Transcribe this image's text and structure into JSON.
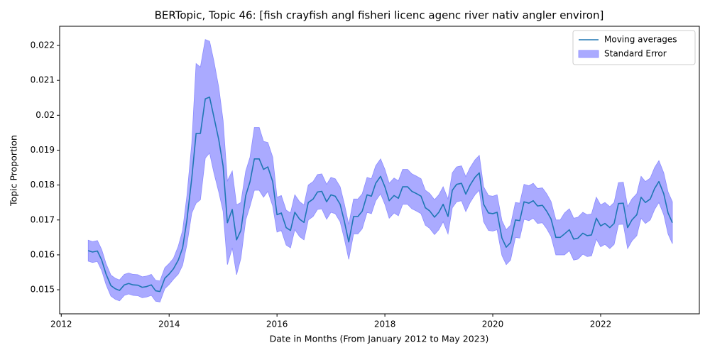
{
  "chart_data": {
    "type": "line",
    "title": "BERTopic, Topic 46: [fish crayfish angl fisheri licenc agenc river nativ angler environ]",
    "xlabel": "Date in Months (From January 2012 to May 2023)",
    "ylabel": "Topic Proportion",
    "x": [
      2012.5,
      2012.58,
      2012.67,
      2012.75,
      2012.83,
      2012.92,
      2013.0,
      2013.08,
      2013.17,
      2013.25,
      2013.33,
      2013.42,
      2013.5,
      2013.58,
      2013.67,
      2013.75,
      2013.83,
      2013.92,
      2014.0,
      2014.08,
      2014.17,
      2014.25,
      2014.33,
      2014.42,
      2014.5,
      2014.58,
      2014.67,
      2014.75,
      2014.83,
      2014.92,
      2015.0,
      2015.08,
      2015.17,
      2015.25,
      2015.33,
      2015.42,
      2015.5,
      2015.58,
      2015.67,
      2015.75,
      2015.83,
      2015.92,
      2016.0,
      2016.08,
      2016.17,
      2016.25,
      2016.33,
      2016.42,
      2016.5,
      2016.58,
      2016.67,
      2016.75,
      2016.83,
      2016.92,
      2017.0,
      2017.08,
      2017.17,
      2017.25,
      2017.33,
      2017.42,
      2017.5,
      2017.58,
      2017.67,
      2017.75,
      2017.83,
      2017.92,
      2018.0,
      2018.08,
      2018.17,
      2018.25,
      2018.33,
      2018.42,
      2018.5,
      2018.58,
      2018.67,
      2018.75,
      2018.83,
      2018.92,
      2019.0,
      2019.08,
      2019.17,
      2019.25,
      2019.33,
      2019.42,
      2019.5,
      2019.58,
      2019.67,
      2019.75,
      2019.83,
      2019.92,
      2020.0,
      2020.08,
      2020.17,
      2020.25,
      2020.33,
      2020.42,
      2020.5,
      2020.58,
      2020.67,
      2020.75,
      2020.83,
      2020.92,
      2021.0,
      2021.08,
      2021.17,
      2021.25,
      2021.33,
      2021.42,
      2021.5,
      2021.58,
      2021.67,
      2021.75,
      2021.83,
      2021.92,
      2022.0,
      2022.08,
      2022.17,
      2022.25,
      2022.33,
      2022.42,
      2022.5,
      2022.58,
      2022.67,
      2022.75,
      2022.83,
      2022.92,
      2023.0,
      2023.08,
      2023.17,
      2023.25,
      2023.33
    ],
    "series": [
      {
        "name": "Moving averages",
        "color": "#1f77b4",
        "values": [
          0.01612,
          0.01608,
          0.01611,
          0.01585,
          0.01545,
          0.01512,
          0.01503,
          0.01498,
          0.01514,
          0.01518,
          0.01514,
          0.01513,
          0.01507,
          0.01509,
          0.01514,
          0.01497,
          0.01495,
          0.01533,
          0.01545,
          0.0156,
          0.01585,
          0.0162,
          0.017,
          0.0182,
          0.01948,
          0.01948,
          0.02047,
          0.02052,
          0.01995,
          0.0193,
          0.01855,
          0.01692,
          0.0173,
          0.01643,
          0.0167,
          0.0177,
          0.0181,
          0.01875,
          0.01875,
          0.01845,
          0.01852,
          0.0181,
          0.01715,
          0.0172,
          0.01678,
          0.0167,
          0.01722,
          0.01702,
          0.01693,
          0.0175,
          0.0176,
          0.0178,
          0.01782,
          0.01752,
          0.01772,
          0.01768,
          0.01745,
          0.01695,
          0.01637,
          0.0171,
          0.0171,
          0.01725,
          0.01772,
          0.01768,
          0.01805,
          0.01825,
          0.01795,
          0.01755,
          0.0177,
          0.01762,
          0.01795,
          0.01795,
          0.01782,
          0.01776,
          0.01768,
          0.01735,
          0.01726,
          0.01708,
          0.01722,
          0.01745,
          0.0171,
          0.01785,
          0.01802,
          0.01805,
          0.01774,
          0.018,
          0.01822,
          0.01835,
          0.01745,
          0.0172,
          0.01718,
          0.01722,
          0.01648,
          0.01622,
          0.01635,
          0.017,
          0.01698,
          0.01752,
          0.01748,
          0.01755,
          0.0174,
          0.01742,
          0.01725,
          0.01703,
          0.0165,
          0.0165,
          0.0166,
          0.01672,
          0.01645,
          0.01648,
          0.01662,
          0.01655,
          0.01657,
          0.01705,
          0.01683,
          0.0169,
          0.01678,
          0.0169,
          0.01747,
          0.01748,
          0.01678,
          0.017,
          0.01715,
          0.01765,
          0.0175,
          0.0176,
          0.0179,
          0.0181,
          0.01775,
          0.0172,
          0.01692
        ]
      },
      {
        "name": "Standard Error",
        "color": "#aaaaff",
        "values": [
          0.0003,
          0.0003,
          0.0003,
          0.0003,
          0.0003,
          0.0003,
          0.0003,
          0.0003,
          0.0003,
          0.0003,
          0.0003,
          0.0003,
          0.0003,
          0.0003,
          0.0003,
          0.0003,
          0.0003,
          0.0003,
          0.0003,
          0.0003,
          0.0004,
          0.0005,
          0.0007,
          0.001,
          0.002,
          0.0019,
          0.0017,
          0.0016,
          0.0016,
          0.0015,
          0.0013,
          0.0012,
          0.0011,
          0.001,
          0.0008,
          0.0007,
          0.0007,
          0.0009,
          0.0009,
          0.0008,
          0.0007,
          0.0007,
          0.0005,
          0.0005,
          0.0005,
          0.0005,
          0.0005,
          0.0005,
          0.0005,
          0.0005,
          0.0005,
          0.0005,
          0.0005,
          0.0005,
          0.0005,
          0.0005,
          0.0005,
          0.0005,
          0.0005,
          0.0005,
          0.0005,
          0.0005,
          0.0005,
          0.0005,
          0.0005,
          0.0005,
          0.0005,
          0.0005,
          0.0005,
          0.0005,
          0.0005,
          0.0005,
          0.0005,
          0.0005,
          0.0005,
          0.0005,
          0.0005,
          0.0005,
          0.0005,
          0.0005,
          0.0005,
          0.0005,
          0.0005,
          0.0005,
          0.0005,
          0.0005,
          0.0005,
          0.0005,
          0.0005,
          0.0005,
          0.0005,
          0.0005,
          0.0005,
          0.0005,
          0.0005,
          0.0005,
          0.0005,
          0.0005,
          0.0005,
          0.0005,
          0.0005,
          0.0005,
          0.0005,
          0.0005,
          0.0005,
          0.0005,
          0.0006,
          0.0006,
          0.0006,
          0.0006,
          0.0006,
          0.0006,
          0.0006,
          0.0006,
          0.0006,
          0.0006,
          0.0006,
          0.0006,
          0.0006,
          0.0006,
          0.0006,
          0.0006,
          0.0006,
          0.0006,
          0.0006,
          0.0006,
          0.0006,
          0.0006,
          0.0006,
          0.0006,
          0.0006
        ]
      }
    ],
    "xlim": [
      2011.97,
      2023.83
    ],
    "ylim": [
      0.01431,
      0.02255
    ],
    "xticks": [
      2012,
      2014,
      2016,
      2018,
      2020,
      2022
    ],
    "yticks": [
      0.015,
      0.016,
      0.017,
      0.018,
      0.019,
      0.02,
      0.021,
      0.022
    ],
    "grid": false,
    "legend": "upper right"
  }
}
